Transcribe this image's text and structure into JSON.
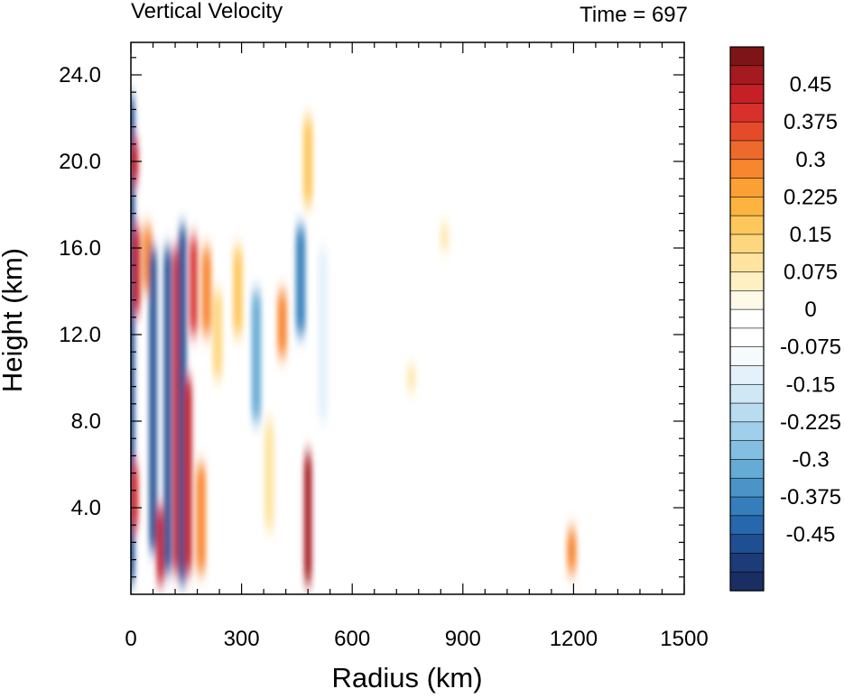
{
  "chart_data": {
    "type": "heatmap",
    "title": "Vertical Velocity",
    "time_label": "Time = 697",
    "xlabel": "Radius (km)",
    "ylabel": "Height (km)",
    "xlim": [
      0,
      1500
    ],
    "ylim": [
      0,
      25.5
    ],
    "xticks": [
      0,
      300,
      600,
      900,
      1200,
      1500
    ],
    "xtick_labels": [
      "0",
      "300",
      "600",
      "900",
      "1200",
      "1500"
    ],
    "yticks": [
      4,
      8,
      12,
      16,
      20,
      24
    ],
    "ytick_labels": [
      "4.0",
      "8.0",
      "12.0",
      "16.0",
      "20.0",
      "24.0"
    ],
    "colorbar": {
      "labels": [
        "0.45",
        "0.375",
        "0.3",
        "0.225",
        "0.15",
        "0.075",
        "0",
        "-0.075",
        "-0.15",
        "-0.225",
        "-0.3",
        "-0.375",
        "-0.45"
      ],
      "levels": [
        0.45,
        0.375,
        0.3,
        0.225,
        0.15,
        0.075,
        0,
        -0.075,
        -0.15,
        -0.225,
        -0.3,
        -0.375,
        -0.45
      ],
      "colors_top_to_bottom": [
        "#7f1416",
        "#a51a1f",
        "#c42026",
        "#d8302a",
        "#e54b2b",
        "#ee6a2c",
        "#f7862f",
        "#fca034",
        "#fdb43e",
        "#fdc75c",
        "#fdd77e",
        "#fee49f",
        "#fff0c4",
        "#fffae8",
        "#ffffff",
        "#ffffff",
        "#f5fafd",
        "#e4f1fa",
        "#d0e7f5",
        "#b9dcf0",
        "#9fcfea",
        "#84bfe2",
        "#66abd6",
        "#4a94c8",
        "#357ebb",
        "#2767ab",
        "#1f4f93",
        "#1c3b78",
        "#1a2e63"
      ]
    },
    "features": [
      {
        "r": 0,
        "z0": 0.5,
        "z1": 23,
        "w": -0.45
      },
      {
        "r": 15,
        "z0": 13,
        "z1": 17,
        "w": 0.45
      },
      {
        "r": 10,
        "z0": 3,
        "z1": 6,
        "w": 0.4
      },
      {
        "r": 10,
        "z0": 19,
        "z1": 21,
        "w": 0.45
      },
      {
        "r": 45,
        "z0": 14,
        "z1": 17,
        "w": 0.3
      },
      {
        "r": 60,
        "z0": 2,
        "z1": 16,
        "w": -0.45
      },
      {
        "r": 80,
        "z0": 0.5,
        "z1": 4,
        "w": 0.45
      },
      {
        "r": 100,
        "z0": 1,
        "z1": 16,
        "w": -0.45
      },
      {
        "r": 125,
        "z0": 1,
        "z1": 16,
        "w": 0.45
      },
      {
        "r": 140,
        "z0": 0.5,
        "z1": 17,
        "w": -0.45
      },
      {
        "r": 155,
        "z0": 1,
        "z1": 10,
        "w": 0.45
      },
      {
        "r": 170,
        "z0": 12,
        "z1": 16.5,
        "w": 0.4
      },
      {
        "r": 190,
        "z0": 1,
        "z1": 6,
        "w": 0.3
      },
      {
        "r": 205,
        "z0": 12,
        "z1": 16,
        "w": 0.3
      },
      {
        "r": 235,
        "z0": 10,
        "z1": 14,
        "w": 0.15
      },
      {
        "r": 290,
        "z0": 12,
        "z1": 16,
        "w": 0.2
      },
      {
        "r": 340,
        "z0": 8,
        "z1": 14,
        "w": -0.3
      },
      {
        "r": 375,
        "z0": 3,
        "z1": 8,
        "w": 0.1
      },
      {
        "r": 410,
        "z0": 11,
        "z1": 14,
        "w": 0.3
      },
      {
        "r": 460,
        "z0": 12,
        "z1": 17,
        "w": -0.375
      },
      {
        "r": 480,
        "z0": 0.5,
        "z1": 6.5,
        "w": 0.5
      },
      {
        "r": 480,
        "z0": 18,
        "z1": 22,
        "w": 0.2
      },
      {
        "r": 520,
        "z0": 8,
        "z1": 16,
        "w": -0.1
      },
      {
        "r": 760,
        "z0": 9.5,
        "z1": 10.5,
        "w": 0.1
      },
      {
        "r": 850,
        "z0": 16,
        "z1": 17,
        "w": 0.1
      },
      {
        "r": 1195,
        "z0": 1,
        "z1": 3,
        "w": 0.3
      }
    ]
  }
}
